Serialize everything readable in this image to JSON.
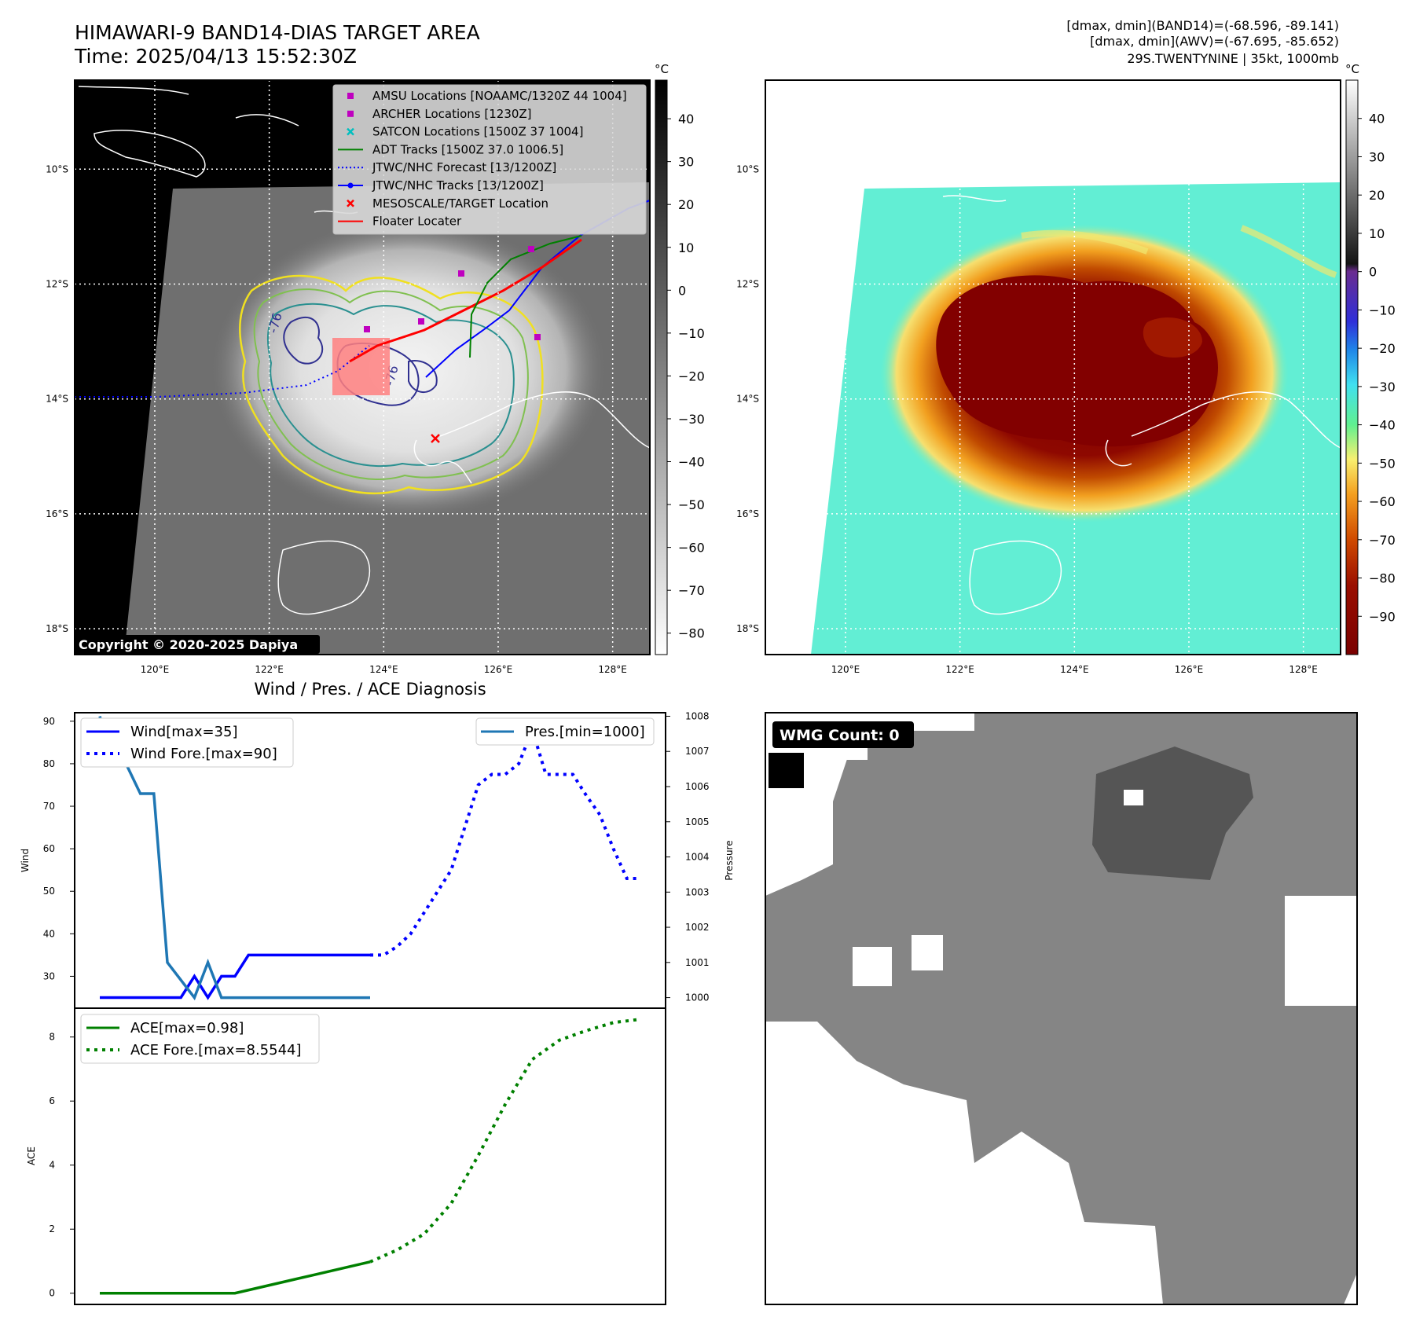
{
  "header": {
    "title": "HIMAWARI-9 BAND14-DIAS TARGET AREA",
    "time": "Time: 2025/04/13 15:52:30Z",
    "info_lines": [
      "[dmax, dmin](BAND14)=(-68.596, -89.141)",
      "[dmax, dmin](AWV)=(-67.695, -85.652)",
      "29S.TWENTYNINE | 35kt, 1000mb"
    ]
  },
  "copyright": "Copyright © 2020-2025 Dapiya",
  "map": {
    "lon_ticks": [
      "120°E",
      "122°E",
      "124°E",
      "126°E",
      "128°E"
    ],
    "lon_values": [
      120,
      122,
      124,
      126,
      128
    ],
    "lat_ticks": [
      "10°S",
      "12°S",
      "14°S",
      "16°S",
      "18°S"
    ],
    "lat_values": [
      -10,
      -12,
      -14,
      -16,
      -18
    ],
    "lon_range": [
      118.6,
      128.65
    ],
    "lat_range": [
      -18.45,
      -8.45
    ],
    "contour_label": "-76",
    "legend": [
      {
        "label": "AMSU Locations [NOAAMC/1320Z 44 1004]",
        "marker": "square",
        "color": "#bf00bf"
      },
      {
        "label": "ARCHER Locations [1230Z]",
        "marker": "square",
        "color": "#bf00bf"
      },
      {
        "label": "SATCON Locations [1500Z 37 1004]",
        "marker": "x",
        "color": "#00bfbf"
      },
      {
        "label": "ADT Tracks [1500Z 37.0 1006.5]",
        "marker": "line",
        "color": "#008000"
      },
      {
        "label": "JTWC/NHC Forecast [13/1200Z]",
        "marker": "dotted",
        "color": "#0000ff"
      },
      {
        "label": "JTWC/NHC Tracks [13/1200Z]",
        "marker": "line-dot",
        "color": "#0000ff"
      },
      {
        "label": "MESOSCALE/TARGET Location",
        "marker": "x",
        "color": "#ff0000"
      },
      {
        "label": "Floater Locater",
        "marker": "line",
        "color": "#ff0000"
      }
    ]
  },
  "colorbar_gray": {
    "unit": "°C",
    "ticks": [
      "40",
      "30",
      "20",
      "10",
      "0",
      "−10",
      "−20",
      "−30",
      "−40",
      "−50",
      "−60",
      "−70",
      "−80"
    ],
    "values": [
      40,
      30,
      20,
      10,
      0,
      -10,
      -20,
      -30,
      -40,
      -50,
      -60,
      -70,
      -80
    ],
    "range": [
      -85,
      49
    ]
  },
  "colorbar_color": {
    "unit": "°C",
    "ticks": [
      "40",
      "30",
      "20",
      "10",
      "0",
      "−10",
      "−20",
      "−30",
      "−40",
      "−50",
      "−60",
      "−70",
      "−80",
      "−90"
    ],
    "values": [
      40,
      30,
      20,
      10,
      0,
      -10,
      -20,
      -30,
      -40,
      -50,
      -60,
      -70,
      -80,
      -90
    ],
    "range": [
      -100,
      50
    ]
  },
  "diag_title": "Wind / Pres. / ACE Diagnosis",
  "wmg_label": "WMG Count: 0",
  "chart_data": [
    {
      "type": "line",
      "title": "Wind / Pres. / ACE Diagnosis",
      "ylabel": "Wind",
      "ylabel_right": "Pressure",
      "ylim": [
        22.5,
        92
      ],
      "ylim_right": [
        999.7,
        1008.1
      ],
      "yticks": [
        "30",
        "40",
        "50",
        "60",
        "70",
        "80",
        "90"
      ],
      "yticks_right": [
        "1000",
        "1001",
        "1002",
        "1003",
        "1004",
        "1005",
        "1006",
        "1007",
        "1008"
      ],
      "x": [
        0,
        1,
        2,
        3,
        4,
        5,
        6,
        7,
        8,
        9,
        10,
        11,
        12,
        13,
        14,
        15,
        16,
        17,
        18,
        19,
        20,
        21,
        22,
        23,
        24,
        25,
        26,
        27,
        28,
        29,
        30,
        31,
        32,
        33,
        34,
        35,
        36,
        37,
        38,
        39,
        40
      ],
      "series": [
        {
          "name": "Wind[max=35]",
          "style": "solid",
          "color": "#0000ff",
          "axis": "left",
          "x": [
            0,
            1,
            2,
            3,
            4,
            5,
            6,
            7,
            8,
            9,
            10,
            11,
            12,
            13,
            14,
            15,
            16,
            17,
            18,
            19,
            20
          ],
          "values": [
            25,
            25,
            25,
            25,
            25,
            25,
            25,
            30,
            25,
            30,
            30,
            35,
            35,
            35,
            35,
            35,
            35,
            35,
            35,
            35,
            35
          ]
        },
        {
          "name": "Wind Fore.[max=90]",
          "style": "dotted",
          "color": "#0000ff",
          "axis": "left",
          "x": [
            20,
            21,
            22,
            23,
            24,
            25,
            26,
            27,
            28,
            29,
            30,
            31,
            32,
            33,
            34,
            35,
            36,
            37,
            38,
            39,
            40
          ],
          "values": [
            35,
            35,
            37,
            40,
            45,
            50,
            55,
            65,
            75,
            77.5,
            77.5,
            80,
            88,
            77.5,
            77.5,
            77.5,
            72.5,
            68,
            60,
            53,
            53
          ]
        },
        {
          "name": "Pres.[min=1000]",
          "style": "solid",
          "color": "#1f77b4",
          "axis": "right",
          "x": [
            0,
            1,
            2,
            3,
            4,
            5,
            6,
            7,
            8,
            9,
            10,
            11,
            12,
            13,
            14,
            15,
            16,
            17,
            18,
            19,
            20
          ],
          "values": [
            1008,
            1006.6,
            1006.6,
            1005.8,
            1005.8,
            1001,
            1000.5,
            1000,
            1001,
            1000,
            1000,
            1000,
            1000,
            1000,
            1000,
            1000,
            1000,
            1000,
            1000,
            1000,
            1000
          ]
        }
      ]
    },
    {
      "type": "line",
      "ylabel": "ACE",
      "ylim": [
        -0.35,
        8.9
      ],
      "yticks": [
        "0",
        "2",
        "4",
        "6",
        "8"
      ],
      "series": [
        {
          "name": "ACE[max=0.98]",
          "style": "solid",
          "color": "#008000",
          "x": [
            0,
            2,
            4,
            6,
            8,
            10,
            12,
            14,
            16,
            18,
            20
          ],
          "values": [
            0,
            0,
            0,
            0,
            0,
            0,
            0.196,
            0.392,
            0.588,
            0.784,
            0.98
          ]
        },
        {
          "name": "ACE Fore.[max=8.5544]",
          "style": "dotted",
          "color": "#008000",
          "x": [
            20,
            22,
            24,
            26,
            28,
            30,
            32,
            34,
            36,
            38,
            40
          ],
          "values": [
            0.98,
            1.35,
            1.85,
            2.8,
            4.3,
            5.9,
            7.3,
            7.9,
            8.2,
            8.45,
            8.5544
          ]
        }
      ]
    }
  ]
}
